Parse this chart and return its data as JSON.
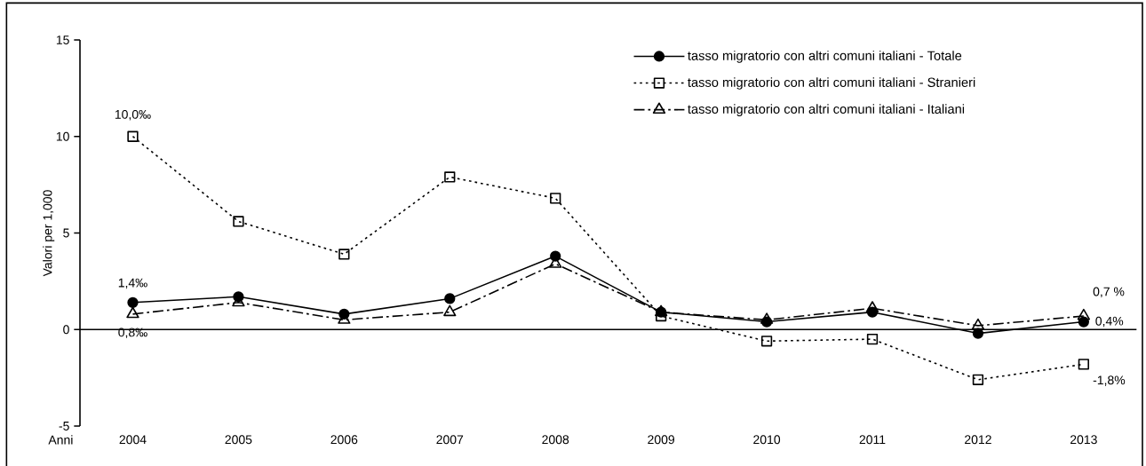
{
  "chart_data": {
    "type": "line",
    "ylabel": "Valori per 1,000",
    "xlabel": "Anni",
    "categories": [
      "2004",
      "2005",
      "2006",
      "2007",
      "2008",
      "2009",
      "2010",
      "2011",
      "2012",
      "2013"
    ],
    "series": [
      {
        "name": "tasso migratorio con altri comuni italiani - Totale",
        "color": "#000000",
        "marker": "circle",
        "line_style": "solid",
        "values": [
          1.4,
          1.7,
          0.8,
          1.6,
          3.8,
          0.9,
          0.4,
          0.9,
          -0.2,
          0.4
        ]
      },
      {
        "name": "tasso migratorio con altri comuni italiani - Stranieri",
        "color": "#000000",
        "marker": "square",
        "line_style": "dotted",
        "values": [
          10.0,
          5.6,
          3.9,
          7.9,
          6.8,
          0.7,
          -0.6,
          -0.5,
          -2.6,
          -1.8
        ]
      },
      {
        "name": "tasso migratorio con altri comuni italiani - Italiani",
        "color": "#000000",
        "marker": "triangle",
        "line_style": "dashdotted",
        "values": [
          0.8,
          1.4,
          0.5,
          0.9,
          3.4,
          0.9,
          0.5,
          1.1,
          0.2,
          0.7
        ]
      }
    ],
    "ylim": [
      -5,
      15
    ],
    "yticks": [
      -5,
      0,
      5,
      10,
      15
    ],
    "legend": "top right",
    "annotations": [
      {
        "text": "10,0‰",
        "x": "2004",
        "y": 10.0
      },
      {
        "text": "1,4‰",
        "x": "2004",
        "y": 1.4
      },
      {
        "text": "0,8‰",
        "x": "2004",
        "y": 0.8
      },
      {
        "text": "0,7 %",
        "x": "2013",
        "y": 0.7
      },
      {
        "text": "0,4%",
        "x": "2013",
        "y": 0.4
      },
      {
        "text": "-1,8%",
        "x": "2013",
        "y": -1.8
      }
    ]
  }
}
